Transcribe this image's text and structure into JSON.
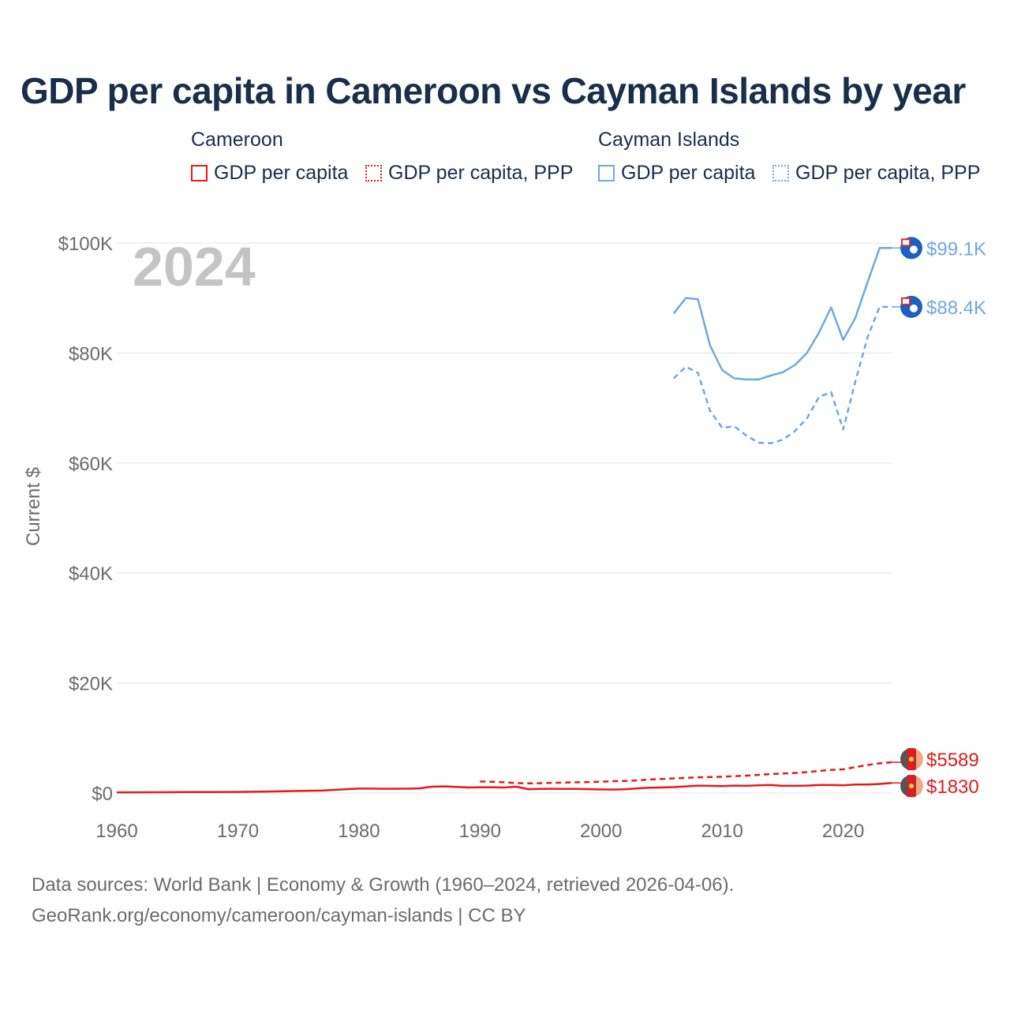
{
  "title": "GDP per capita in Cameroon vs Cayman Islands by year",
  "year_label": "2024",
  "legend": {
    "groups": [
      {
        "name": "Cameroon",
        "color": "#e41a1c",
        "items": [
          {
            "label": "GDP per capita",
            "style": "solid"
          },
          {
            "label": "GDP per capita, PPP",
            "style": "dotted"
          }
        ]
      },
      {
        "name": "Cayman Islands",
        "color": "#6fa8dc",
        "items": [
          {
            "label": "GDP per capita",
            "style": "solid"
          },
          {
            "label": "GDP per capita, PPP",
            "style": "dotted"
          }
        ]
      }
    ]
  },
  "footer": {
    "line1": "Data sources: World Bank | Economy & Growth (1960–2024, retrieved 2026-04-06).",
    "line2": "GeoRank.org/economy/cameroon/cayman-islands | CC BY"
  },
  "chart_data": {
    "type": "line",
    "title": "GDP per capita in Cameroon vs Cayman Islands by year",
    "xlabel": "",
    "ylabel": "Current $",
    "xlim": [
      1960,
      2024
    ],
    "ylim": [
      0,
      100000
    ],
    "x_ticks": [
      1960,
      1970,
      1980,
      1990,
      2000,
      2010,
      2020
    ],
    "y_ticks": [
      0,
      20000,
      40000,
      60000,
      80000,
      100000
    ],
    "y_tick_labels": [
      "$0",
      "$20K",
      "$40K",
      "$60K",
      "$80K",
      "$100K"
    ],
    "grid": true,
    "series": [
      {
        "name": "Cayman Islands — GDP per capita",
        "color": "#6fa8dc",
        "dash": "solid",
        "end_label": "$99.1K",
        "x": [
          2006,
          2007,
          2008,
          2009,
          2010,
          2011,
          2012,
          2013,
          2014,
          2015,
          2016,
          2017,
          2018,
          2019,
          2020,
          2021,
          2022,
          2023,
          2024
        ],
        "y": [
          87200,
          90000,
          89800,
          81400,
          76900,
          75400,
          75200,
          75200,
          75900,
          76500,
          77800,
          80000,
          83700,
          88300,
          82400,
          86400,
          92800,
          99100,
          99100
        ]
      },
      {
        "name": "Cayman Islands — GDP per capita, PPP",
        "color": "#6fa8dc",
        "dash": "dashed",
        "end_label": "$88.4K",
        "x": [
          2006,
          2007,
          2008,
          2009,
          2010,
          2011,
          2012,
          2013,
          2014,
          2015,
          2016,
          2017,
          2018,
          2019,
          2020,
          2021,
          2022,
          2023,
          2024
        ],
        "y": [
          75400,
          77500,
          76400,
          69500,
          66400,
          66700,
          65000,
          63700,
          63600,
          64200,
          65800,
          68100,
          72000,
          72900,
          66100,
          74800,
          82800,
          88400,
          88400
        ]
      },
      {
        "name": "Cameroon — GDP per capita, PPP",
        "color": "#e41a1c",
        "dash": "dashed",
        "end_label": "$5589",
        "x": [
          1990,
          1991,
          1992,
          1993,
          1994,
          1995,
          1996,
          1997,
          1998,
          1999,
          2000,
          2001,
          2002,
          2003,
          2004,
          2005,
          2006,
          2007,
          2008,
          2009,
          2010,
          2011,
          2012,
          2013,
          2014,
          2015,
          2016,
          2017,
          2018,
          2019,
          2020,
          2021,
          2022,
          2023,
          2024
        ],
        "y": [
          2100,
          2050,
          1950,
          1800,
          1750,
          1800,
          1850,
          1900,
          1950,
          2000,
          2050,
          2150,
          2200,
          2300,
          2450,
          2550,
          2650,
          2750,
          2850,
          2900,
          2950,
          3050,
          3150,
          3300,
          3450,
          3550,
          3650,
          3800,
          4000,
          4200,
          4300,
          4700,
          5100,
          5400,
          5589
        ]
      },
      {
        "name": "Cameroon — GDP per capita",
        "color": "#e41a1c",
        "dash": "solid",
        "end_label": "$1830",
        "x": [
          1960,
          1962,
          1964,
          1966,
          1968,
          1970,
          1972,
          1974,
          1975,
          1976,
          1977,
          1978,
          1979,
          1980,
          1981,
          1982,
          1983,
          1984,
          1985,
          1986,
          1987,
          1988,
          1989,
          1990,
          1991,
          1992,
          1993,
          1994,
          1995,
          1996,
          1997,
          1998,
          1999,
          2000,
          2001,
          2002,
          2003,
          2004,
          2005,
          2006,
          2007,
          2008,
          2009,
          2010,
          2011,
          2012,
          2013,
          2014,
          2015,
          2016,
          2017,
          2018,
          2019,
          2020,
          2021,
          2022,
          2023,
          2024
        ],
        "y": [
          110,
          130,
          150,
          165,
          190,
          200,
          250,
          320,
          380,
          420,
          450,
          580,
          700,
          800,
          800,
          780,
          770,
          790,
          850,
          1150,
          1200,
          1100,
          1000,
          1050,
          1040,
          1000,
          1150,
          700,
          750,
          780,
          760,
          740,
          700,
          650,
          630,
          680,
          850,
          980,
          1000,
          1080,
          1200,
          1350,
          1300,
          1250,
          1350,
          1300,
          1400,
          1450,
          1300,
          1300,
          1350,
          1450,
          1450,
          1400,
          1550,
          1550,
          1650,
          1830
        ]
      }
    ]
  }
}
